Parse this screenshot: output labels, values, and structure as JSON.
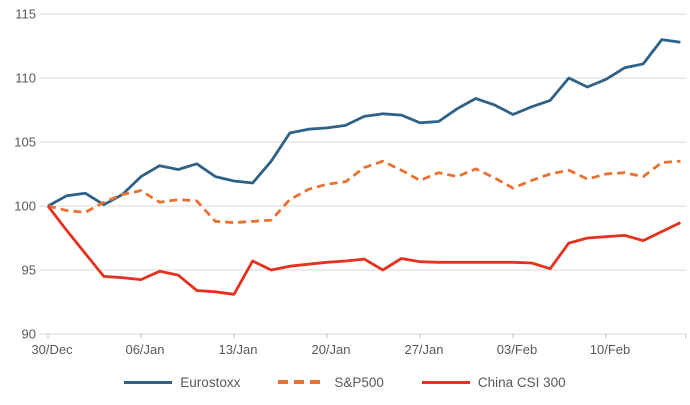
{
  "chart_data": {
    "type": "line",
    "title": "",
    "xlabel": "",
    "ylabel": "",
    "x": [
      "30/Dec",
      "31/Dec",
      "01/Jan",
      "02/Jan",
      "03/Jan",
      "06/Jan",
      "07/Jan",
      "08/Jan",
      "09/Jan",
      "10/Jan",
      "13/Jan",
      "14/Jan",
      "15/Jan",
      "16/Jan",
      "17/Jan",
      "20/Jan",
      "21/Jan",
      "22/Jan",
      "23/Jan",
      "24/Jan",
      "27/Jan",
      "28/Jan",
      "29/Jan",
      "30/Jan",
      "31/Jan",
      "03/Feb",
      "04/Feb",
      "05/Feb",
      "06/Feb",
      "07/Feb",
      "10/Feb",
      "11/Feb",
      "12/Feb",
      "13/Feb",
      "14/Feb"
    ],
    "x_tick_indices": [
      0,
      5,
      10,
      15,
      20,
      25,
      30
    ],
    "x_tick_labels": [
      "30/Dec",
      "06/Jan",
      "13/Jan",
      "20/Jan",
      "27/Jan",
      "03/Feb",
      "10/Feb"
    ],
    "y_ticks": [
      90,
      95,
      100,
      105,
      110,
      115
    ],
    "ylim": [
      90,
      115
    ],
    "grid": "horizontal-only",
    "legend_position": "bottom-center",
    "baseline_value": 100,
    "series": [
      {
        "name": "Eurostoxx",
        "color": "#2F6288",
        "style": "solid",
        "values": [
          100.0,
          100.8,
          101.0,
          100.1,
          100.9,
          102.3,
          103.15,
          102.85,
          103.3,
          102.3,
          101.95,
          101.8,
          103.5,
          105.7,
          106.0,
          106.1,
          106.3,
          107.0,
          107.2,
          107.1,
          106.5,
          106.6,
          107.6,
          108.4,
          107.9,
          107.15,
          107.75,
          108.25,
          110.0,
          109.3,
          109.9,
          110.8,
          111.1,
          113.0,
          112.8
        ]
      },
      {
        "name": "S&P500",
        "color": "#E97132",
        "style": "dashed",
        "values": [
          100.0,
          99.65,
          99.5,
          100.3,
          100.9,
          101.2,
          100.3,
          100.5,
          100.4,
          98.8,
          98.7,
          98.8,
          98.9,
          100.5,
          101.3,
          101.7,
          101.9,
          103.0,
          103.5,
          102.8,
          102.0,
          102.6,
          102.3,
          102.9,
          102.2,
          101.4,
          102.0,
          102.5,
          102.8,
          102.1,
          102.5,
          102.6,
          102.3,
          103.4,
          103.5
        ]
      },
      {
        "name": "China CSI 300",
        "color": "#E5321E",
        "style": "solid",
        "values": [
          100.0,
          98.1,
          96.3,
          94.5,
          94.4,
          94.25,
          94.9,
          94.6,
          93.4,
          93.3,
          93.1,
          95.7,
          95.0,
          95.3,
          95.45,
          95.6,
          95.7,
          95.85,
          95.0,
          95.9,
          95.65,
          95.6,
          95.6,
          95.6,
          95.6,
          95.6,
          95.55,
          95.1,
          97.1,
          97.5,
          97.6,
          97.7,
          97.3,
          98.0,
          98.7
        ]
      }
    ],
    "colors": {
      "grid": "#D9D9D9",
      "axis": "#D9D9D9",
      "tick": "#BFBFBF",
      "label_text": "#595959",
      "background": "#FFFFFF"
    }
  }
}
